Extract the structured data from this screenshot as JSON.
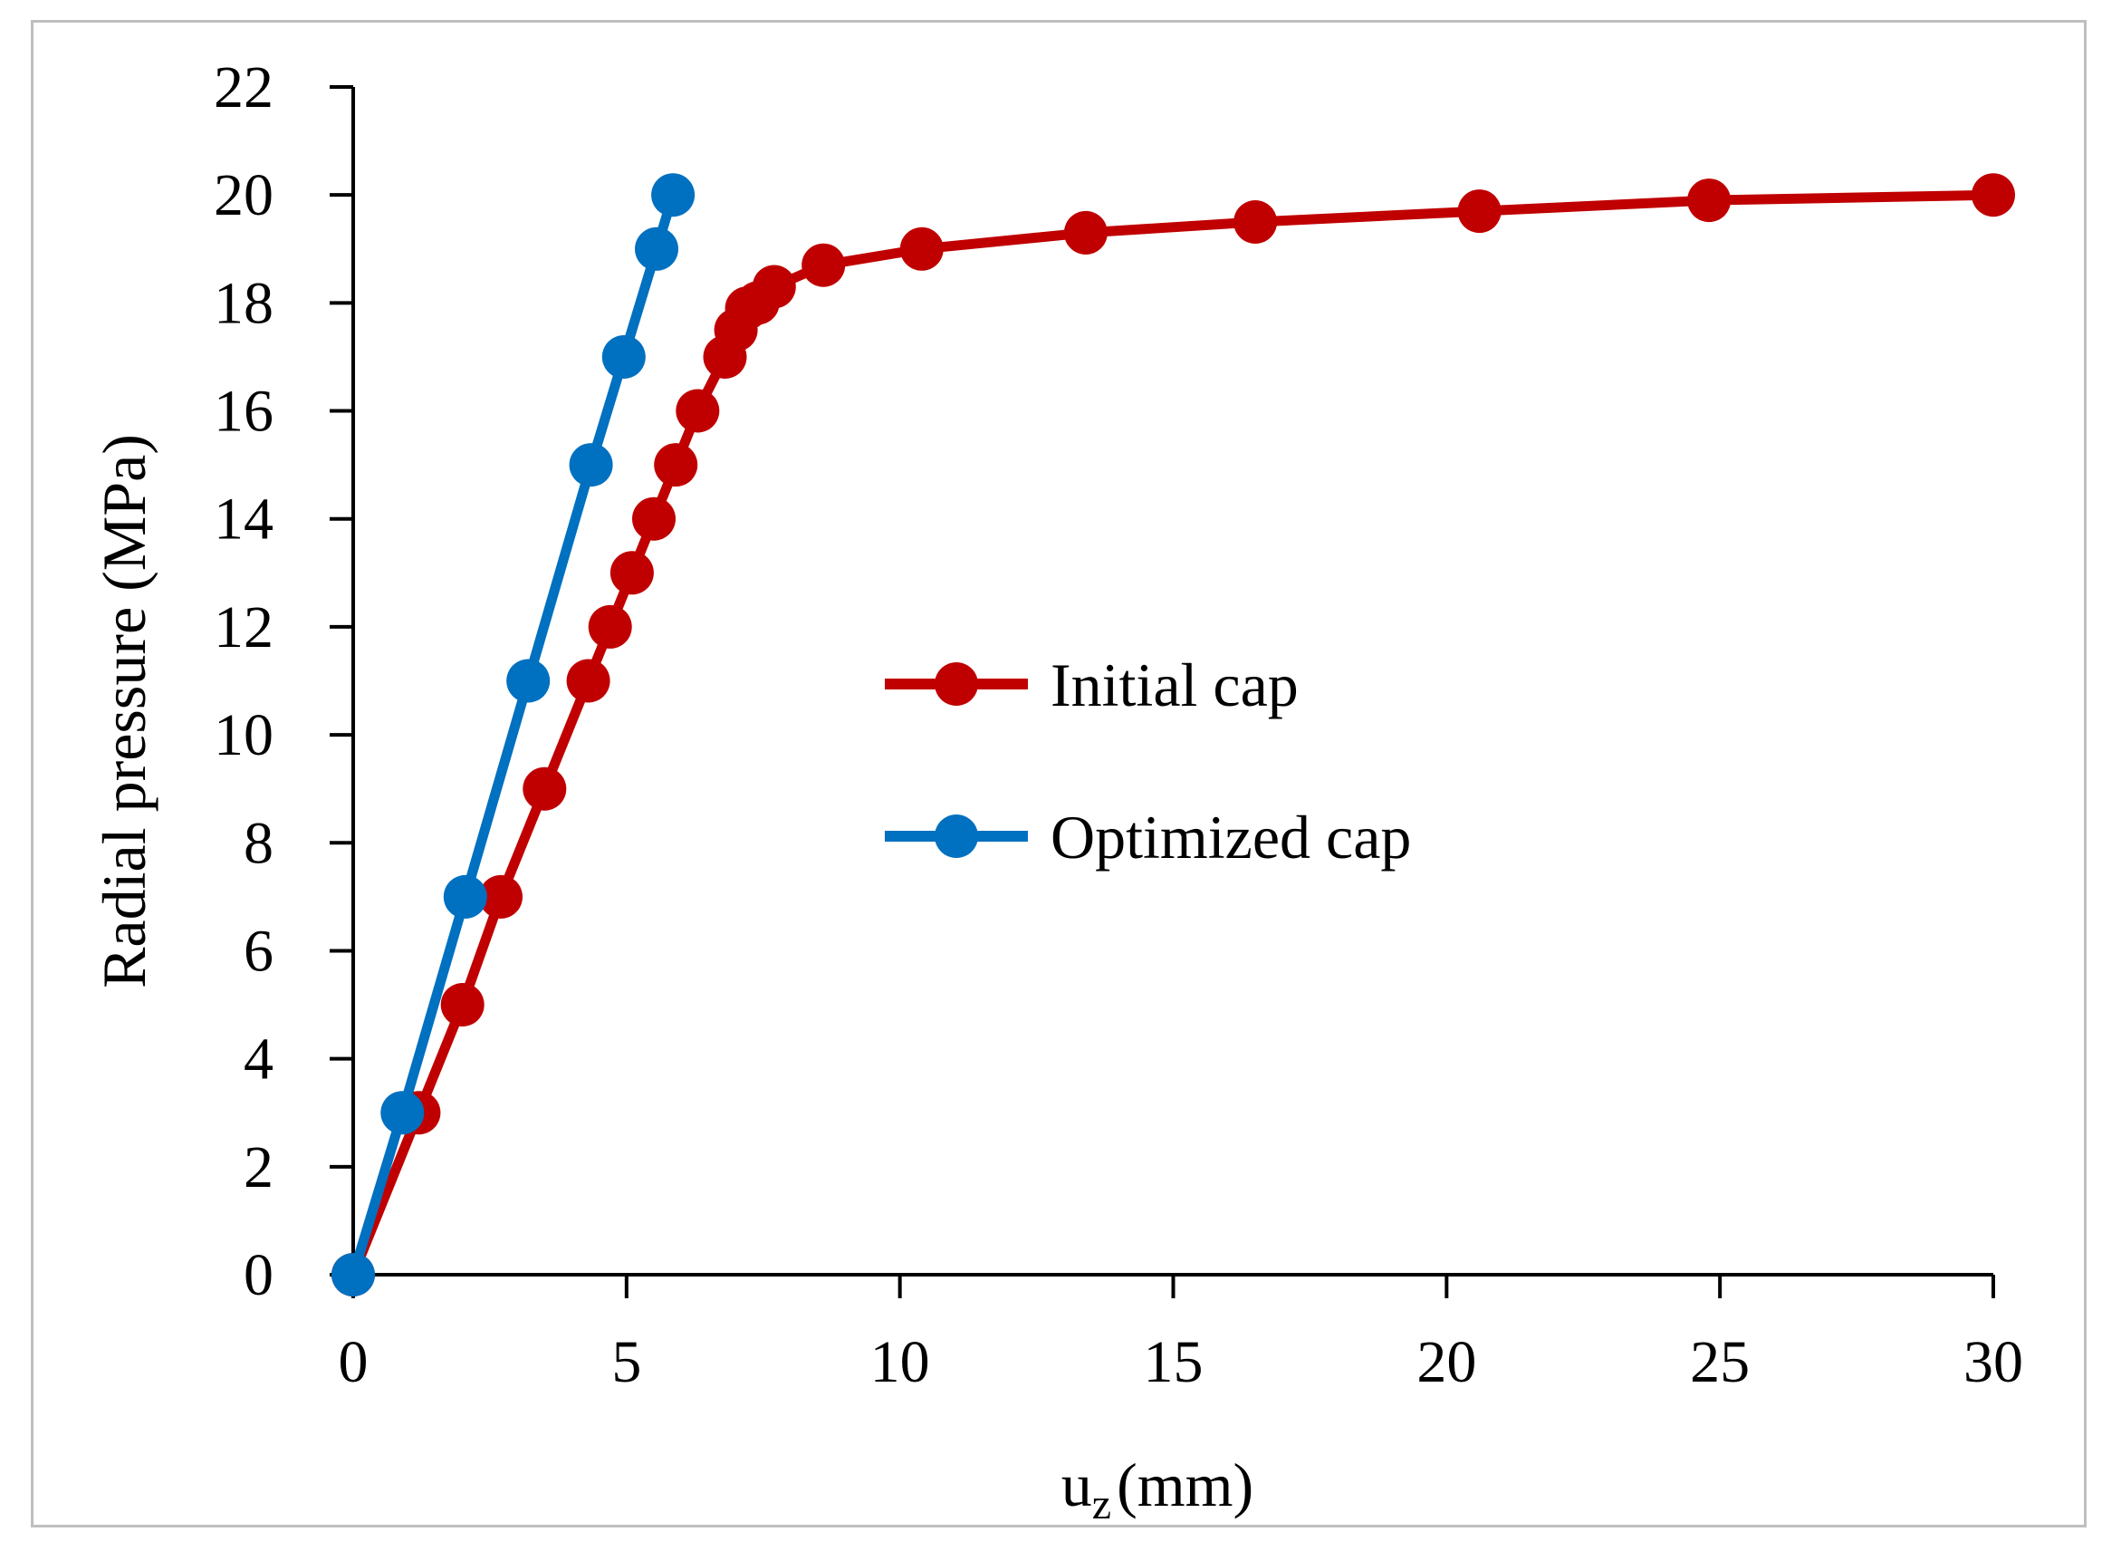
{
  "chart_data": {
    "type": "line",
    "title": "",
    "xlabel_main": "u",
    "xlabel_sub": "z",
    "xlabel_unit": "(mm)",
    "ylabel": "Radial pressure  (MPa)",
    "xlim": [
      0,
      30
    ],
    "ylim": [
      0,
      22
    ],
    "xticks": [
      0,
      5,
      10,
      15,
      20,
      25,
      30
    ],
    "yticks": [
      0,
      2,
      4,
      6,
      8,
      10,
      12,
      14,
      16,
      18,
      20,
      22
    ],
    "grid": false,
    "legend_position": "center-right",
    "series": [
      {
        "name": "Initial cap",
        "color": "#c00000",
        "x": [
          0,
          1.2,
          2.0,
          2.7,
          3.5,
          4.3,
          4.7,
          5.1,
          5.5,
          5.9,
          6.3,
          6.8,
          7.0,
          7.2,
          7.4,
          7.7,
          8.6,
          10.4,
          13.4,
          16.5,
          20.6,
          24.8,
          30
        ],
        "y": [
          0,
          3,
          5,
          7,
          9,
          11,
          12,
          13,
          14,
          15,
          16,
          17,
          17.5,
          17.9,
          18.0,
          18.3,
          18.7,
          19.0,
          19.3,
          19.5,
          19.7,
          19.9,
          20.0
        ]
      },
      {
        "name": "Optimized cap",
        "color": "#0070c0",
        "x": [
          0,
          0.9,
          2.05,
          3.2,
          4.35,
          4.95,
          5.55,
          5.85
        ],
        "y": [
          0,
          3,
          7,
          11,
          15,
          17,
          19,
          20
        ]
      }
    ]
  }
}
